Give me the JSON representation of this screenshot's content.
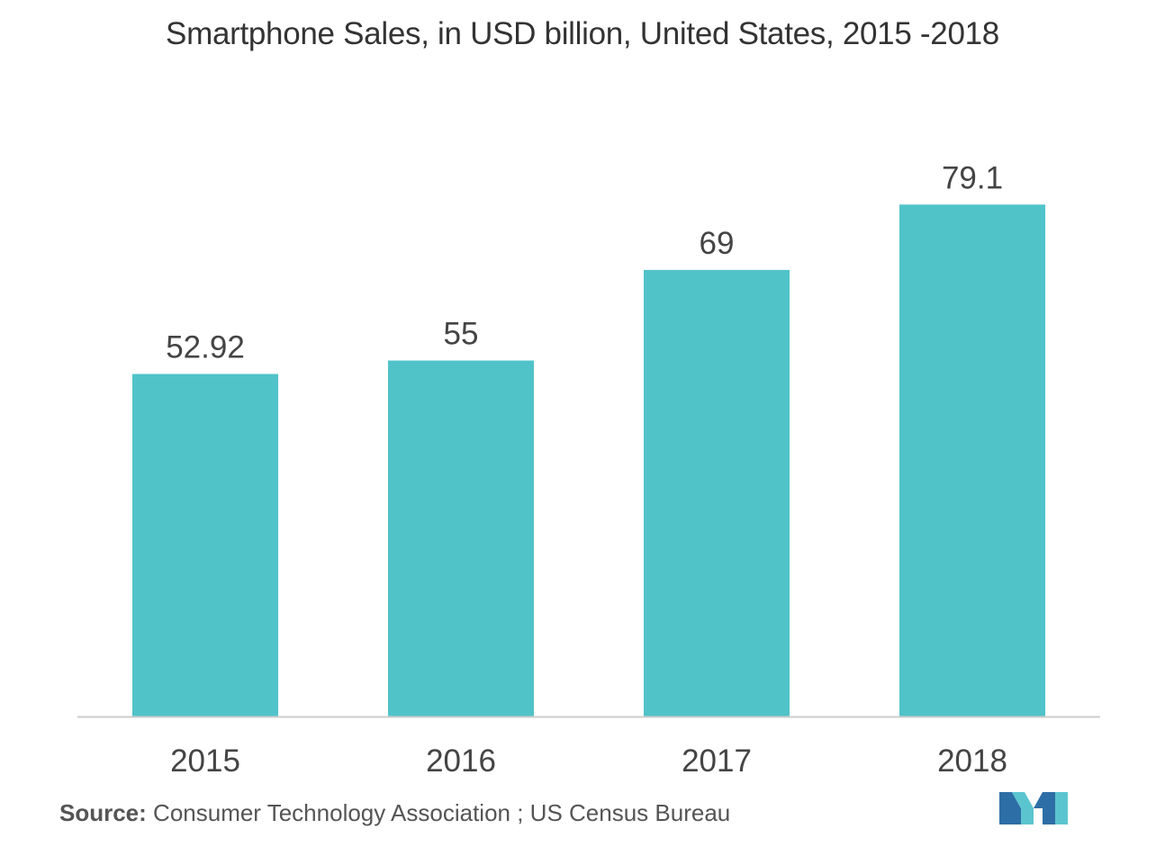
{
  "chart_data": {
    "type": "bar",
    "title": "Smartphone Sales, in USD billion, United States, 2015 -2018",
    "categories": [
      "2015",
      "2016",
      "2017",
      "2018"
    ],
    "values": [
      52.92,
      55,
      69,
      79.1
    ],
    "data_labels": [
      "52.92",
      "55",
      "69",
      "79.1"
    ],
    "xlabel": "",
    "ylabel": "",
    "ylim": [
      0,
      100
    ],
    "grid": false,
    "bar_color": "#50C3C9",
    "axis_color": "#cccccc"
  },
  "source": {
    "label": "Source:",
    "text": " Consumer Technology Association ; US Census Bureau"
  },
  "logo": {
    "icon": "mordor-logo-icon",
    "colors": [
      "#2E6EA6",
      "#5BC5CF"
    ]
  }
}
